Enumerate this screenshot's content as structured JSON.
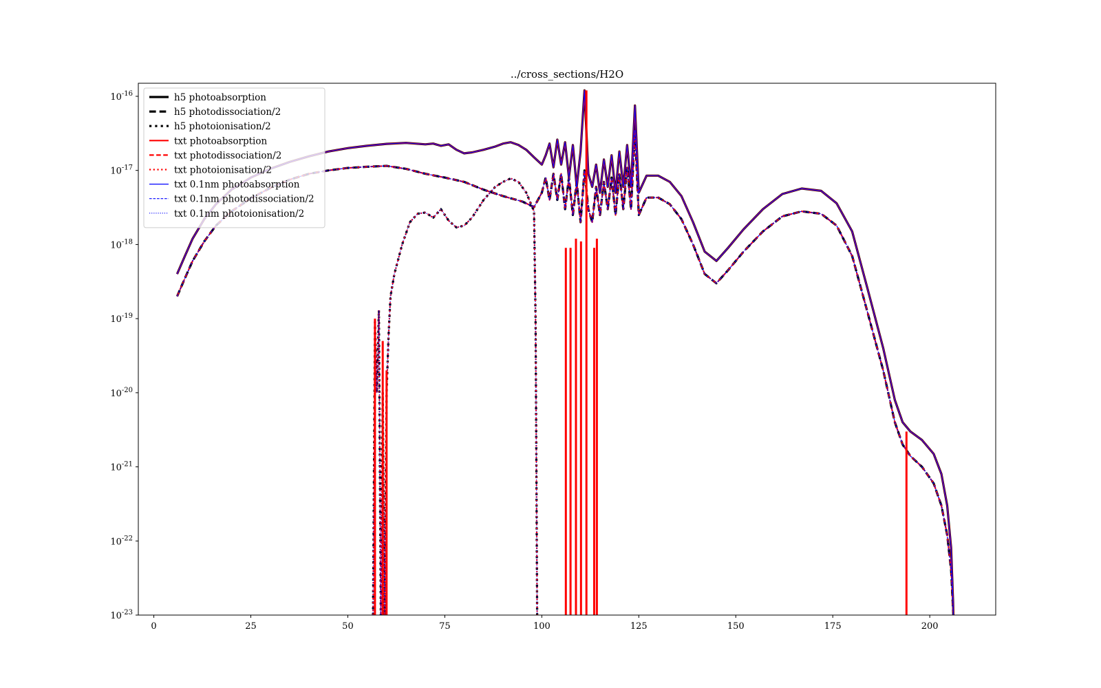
{
  "chart_data": {
    "type": "line",
    "title": "../cross_sections/H2O",
    "xlabel": "",
    "ylabel": "",
    "xlim": [
      -4,
      217
    ],
    "ylim": [
      1e-23,
      1.5e-16
    ],
    "yscale": "log",
    "grid": false,
    "legend_position": "upper-left",
    "x_ticks": [
      0,
      25,
      50,
      75,
      100,
      125,
      150,
      175,
      200
    ],
    "y_ticks": [
      {
        "value": 1e-23,
        "base": "10",
        "exp": "-23"
      },
      {
        "value": 1e-22,
        "base": "10",
        "exp": "-22"
      },
      {
        "value": 1e-21,
        "base": "10",
        "exp": "-21"
      },
      {
        "value": 1e-20,
        "base": "10",
        "exp": "-20"
      },
      {
        "value": 1e-19,
        "base": "10",
        "exp": "-19"
      },
      {
        "value": 1e-18,
        "base": "10",
        "exp": "-18"
      },
      {
        "value": 1e-17,
        "base": "10",
        "exp": "-17"
      },
      {
        "value": 1e-16,
        "base": "10",
        "exp": "-16"
      }
    ],
    "series": [
      {
        "name": "h5 photoabsorption",
        "color": "#000000",
        "style": "solid",
        "width": "thick",
        "curve": "absorption"
      },
      {
        "name": "h5 photodissociation/2",
        "color": "#000000",
        "style": "dashed",
        "width": "thick",
        "curve": "dissociation"
      },
      {
        "name": "h5 photoionisation/2",
        "color": "#000000",
        "style": "dotted",
        "width": "thick",
        "curve": "ionisation"
      },
      {
        "name": "txt photoabsorption",
        "color": "#ff0000",
        "style": "solid",
        "width": "medium",
        "curve": "absorption"
      },
      {
        "name": "txt photodissociation/2",
        "color": "#ff0000",
        "style": "dashed",
        "width": "medium",
        "curve": "dissociation"
      },
      {
        "name": "txt photoionisation/2",
        "color": "#ff0000",
        "style": "dotted",
        "width": "medium",
        "curve": "ionisation"
      },
      {
        "name": "txt 0.1nm photoabsorption",
        "color": "#0000ff",
        "style": "solid",
        "width": "thin",
        "curve": "absorption"
      },
      {
        "name": "txt 0.1nm photodissociation/2",
        "color": "#0000ff",
        "style": "dashed",
        "width": "thin",
        "curve": "dissociation"
      },
      {
        "name": "txt 0.1nm photoionisation/2",
        "color": "#0000ff",
        "style": "dotted",
        "width": "thin",
        "curve": "ionisation"
      }
    ],
    "curves": {
      "absorption": [
        [
          6,
          4e-19
        ],
        [
          8,
          7e-19
        ],
        [
          10,
          1.2e-18
        ],
        [
          13,
          2.2e-18
        ],
        [
          16,
          3.5e-18
        ],
        [
          20,
          5.5e-18
        ],
        [
          25,
          8e-18
        ],
        [
          30,
          1.05e-17
        ],
        [
          35,
          1.3e-17
        ],
        [
          40,
          1.55e-17
        ],
        [
          45,
          1.8e-17
        ],
        [
          50,
          2e-17
        ],
        [
          55,
          2.15e-17
        ],
        [
          60,
          2.28e-17
        ],
        [
          65,
          2.35e-17
        ],
        [
          70,
          2.25e-17
        ],
        [
          72,
          2.3e-17
        ],
        [
          74,
          2.15e-17
        ],
        [
          76,
          2.25e-17
        ],
        [
          78,
          1.9e-17
        ],
        [
          80,
          1.7e-17
        ],
        [
          82,
          1.75e-17
        ],
        [
          85,
          1.9e-17
        ],
        [
          88,
          2.1e-17
        ],
        [
          90,
          2.3e-17
        ],
        [
          92,
          2.4e-17
        ],
        [
          94,
          2.2e-17
        ],
        [
          96,
          1.9e-17
        ],
        [
          98,
          1.5e-17
        ],
        [
          100,
          1.2e-17
        ],
        [
          101,
          1.6e-17
        ],
        [
          102,
          2.3e-17
        ],
        [
          103,
          1.1e-17
        ],
        [
          104,
          2.6e-17
        ],
        [
          105,
          1.2e-17
        ],
        [
          106,
          2.4e-17
        ],
        [
          107,
          8e-18
        ],
        [
          108,
          2.2e-17
        ],
        [
          109,
          6e-18
        ],
        [
          110,
          1.8e-17
        ],
        [
          111,
          1.2e-16
        ],
        [
          112,
          9e-18
        ],
        [
          113,
          6e-18
        ],
        [
          114,
          1.2e-17
        ],
        [
          115,
          5e-18
        ],
        [
          116,
          1.4e-17
        ],
        [
          117,
          6e-18
        ],
        [
          118,
          1.6e-17
        ],
        [
          119,
          5e-18
        ],
        [
          120,
          1.8e-17
        ],
        [
          121,
          6e-18
        ],
        [
          122,
          2.2e-17
        ],
        [
          123,
          6e-18
        ],
        [
          124,
          7.5e-17
        ],
        [
          125,
          5e-18
        ],
        [
          127,
          8.5e-18
        ],
        [
          130,
          8.5e-18
        ],
        [
          133,
          7e-18
        ],
        [
          136,
          4.5e-18
        ],
        [
          139,
          2e-18
        ],
        [
          142,
          8e-19
        ],
        [
          145,
          6e-19
        ],
        [
          148,
          9e-19
        ],
        [
          152,
          1.6e-18
        ],
        [
          157,
          3e-18
        ],
        [
          162,
          4.8e-18
        ],
        [
          167,
          5.7e-18
        ],
        [
          172,
          5.3e-18
        ],
        [
          176,
          3.6e-18
        ],
        [
          180,
          1.5e-18
        ],
        [
          184,
          2.5e-19
        ],
        [
          188,
          4e-20
        ],
        [
          191,
          8e-21
        ],
        [
          193,
          4e-21
        ],
        [
          195,
          3e-21
        ],
        [
          198,
          2.3e-21
        ],
        [
          201,
          1.5e-21
        ],
        [
          203,
          8e-22
        ],
        [
          204.5,
          3e-22
        ],
        [
          205.5,
          8e-23
        ],
        [
          206,
          1.5e-23
        ],
        [
          206.1,
          1e-23
        ]
      ],
      "dissociation": [
        [
          6,
          2e-19
        ],
        [
          8,
          3.5e-19
        ],
        [
          10,
          6e-19
        ],
        [
          13,
          1.1e-18
        ],
        [
          16,
          1.8e-18
        ],
        [
          20,
          2.8e-18
        ],
        [
          25,
          4.2e-18
        ],
        [
          30,
          5.8e-18
        ],
        [
          35,
          7.5e-18
        ],
        [
          40,
          9e-18
        ],
        [
          45,
          1e-17
        ],
        [
          50,
          1.08e-17
        ],
        [
          55,
          1.12e-17
        ],
        [
          60,
          1.15e-17
        ],
        [
          65,
          1.05e-17
        ],
        [
          70,
          9e-18
        ],
        [
          75,
          8e-18
        ],
        [
          80,
          7e-18
        ],
        [
          85,
          5.5e-18
        ],
        [
          90,
          4.5e-18
        ],
        [
          95,
          3.8e-18
        ],
        [
          98,
          3.2e-18
        ],
        [
          100,
          5e-18
        ],
        [
          101,
          8e-18
        ],
        [
          102,
          4e-18
        ],
        [
          103,
          9e-18
        ],
        [
          104,
          4e-18
        ],
        [
          105,
          9e-18
        ],
        [
          106,
          3e-18
        ],
        [
          107,
          8e-18
        ],
        [
          108,
          2.5e-18
        ],
        [
          109,
          7e-18
        ],
        [
          110,
          2e-18
        ],
        [
          111,
          1e-17
        ],
        [
          112,
          3e-18
        ],
        [
          113,
          2e-18
        ],
        [
          114,
          6e-18
        ],
        [
          115,
          2.5e-18
        ],
        [
          116,
          7e-18
        ],
        [
          117,
          3e-18
        ],
        [
          118,
          8e-18
        ],
        [
          119,
          2.5e-18
        ],
        [
          120,
          9e-18
        ],
        [
          121,
          3e-18
        ],
        [
          122,
          1.1e-17
        ],
        [
          123,
          3e-18
        ],
        [
          124,
          3.5e-17
        ],
        [
          125,
          2.5e-18
        ],
        [
          127,
          4.3e-18
        ],
        [
          130,
          4.3e-18
        ],
        [
          133,
          3.5e-18
        ],
        [
          136,
          2.2e-18
        ],
        [
          139,
          1e-18
        ],
        [
          142,
          4e-19
        ],
        [
          145,
          3e-19
        ],
        [
          148,
          4.5e-19
        ],
        [
          152,
          8e-19
        ],
        [
          157,
          1.5e-18
        ],
        [
          162,
          2.4e-18
        ],
        [
          167,
          2.8e-18
        ],
        [
          172,
          2.6e-18
        ],
        [
          176,
          1.8e-18
        ],
        [
          180,
          7e-19
        ],
        [
          184,
          1.2e-19
        ],
        [
          188,
          2e-20
        ],
        [
          191,
          4e-21
        ],
        [
          193,
          2e-21
        ],
        [
          195,
          1.4e-21
        ],
        [
          198,
          1e-21
        ],
        [
          201,
          6e-22
        ],
        [
          203,
          3e-22
        ],
        [
          204.5,
          1.2e-22
        ],
        [
          205.5,
          4e-23
        ],
        [
          206,
          1.2e-23
        ],
        [
          206.1,
          1e-23
        ]
      ],
      "ionisation": [
        [
          56.5,
          1e-23
        ],
        [
          57,
          9e-20
        ],
        [
          57.5,
          1e-20
        ],
        [
          58,
          1.3e-19
        ],
        [
          58.5,
          1e-23
        ],
        [
          59,
          1e-20
        ],
        [
          59.5,
          1e-23
        ],
        [
          60,
          1e-20
        ],
        [
          60.5,
          6e-20
        ],
        [
          61,
          2e-19
        ],
        [
          62,
          4e-19
        ],
        [
          64,
          1e-18
        ],
        [
          66,
          2e-18
        ],
        [
          68,
          2.6e-18
        ],
        [
          70,
          2.7e-18
        ],
        [
          72,
          2.3e-18
        ],
        [
          74,
          3e-18
        ],
        [
          76,
          2.1e-18
        ],
        [
          78,
          1.7e-18
        ],
        [
          80,
          1.8e-18
        ],
        [
          82,
          2.3e-18
        ],
        [
          85,
          4e-18
        ],
        [
          88,
          6e-18
        ],
        [
          90,
          7e-18
        ],
        [
          92,
          7.8e-18
        ],
        [
          94,
          7e-18
        ],
        [
          96,
          5e-18
        ],
        [
          98,
          2.8e-18
        ],
        [
          98.4,
          1e-19
        ],
        [
          98.6,
          1e-21
        ],
        [
          98.8,
          1e-23
        ]
      ],
      "red_spikes": [
        [
          [
            57,
            1e-23
          ],
          [
            57,
            1e-19
          ]
        ],
        [
          [
            59,
            1e-23
          ],
          [
            59,
            5e-20
          ]
        ],
        [
          [
            60,
            1e-23
          ],
          [
            60,
            2e-20
          ]
        ],
        [
          [
            106.2,
            1e-23
          ],
          [
            106.2,
            9e-19
          ]
        ],
        [
          [
            107.4,
            1e-23
          ],
          [
            107.4,
            9e-19
          ]
        ],
        [
          [
            108.8,
            1e-23
          ],
          [
            108.8,
            1.2e-18
          ]
        ],
        [
          [
            110.1,
            1e-23
          ],
          [
            110.1,
            1.1e-18
          ]
        ],
        [
          [
            111.5,
            1e-23
          ],
          [
            111.5,
            1.2e-16
          ]
        ],
        [
          [
            113.5,
            1e-23
          ],
          [
            113.5,
            9e-19
          ]
        ],
        [
          [
            114.2,
            1e-23
          ],
          [
            114.2,
            1.2e-18
          ]
        ],
        [
          [
            194,
            1e-23
          ],
          [
            194,
            3e-21
          ]
        ]
      ]
    }
  }
}
